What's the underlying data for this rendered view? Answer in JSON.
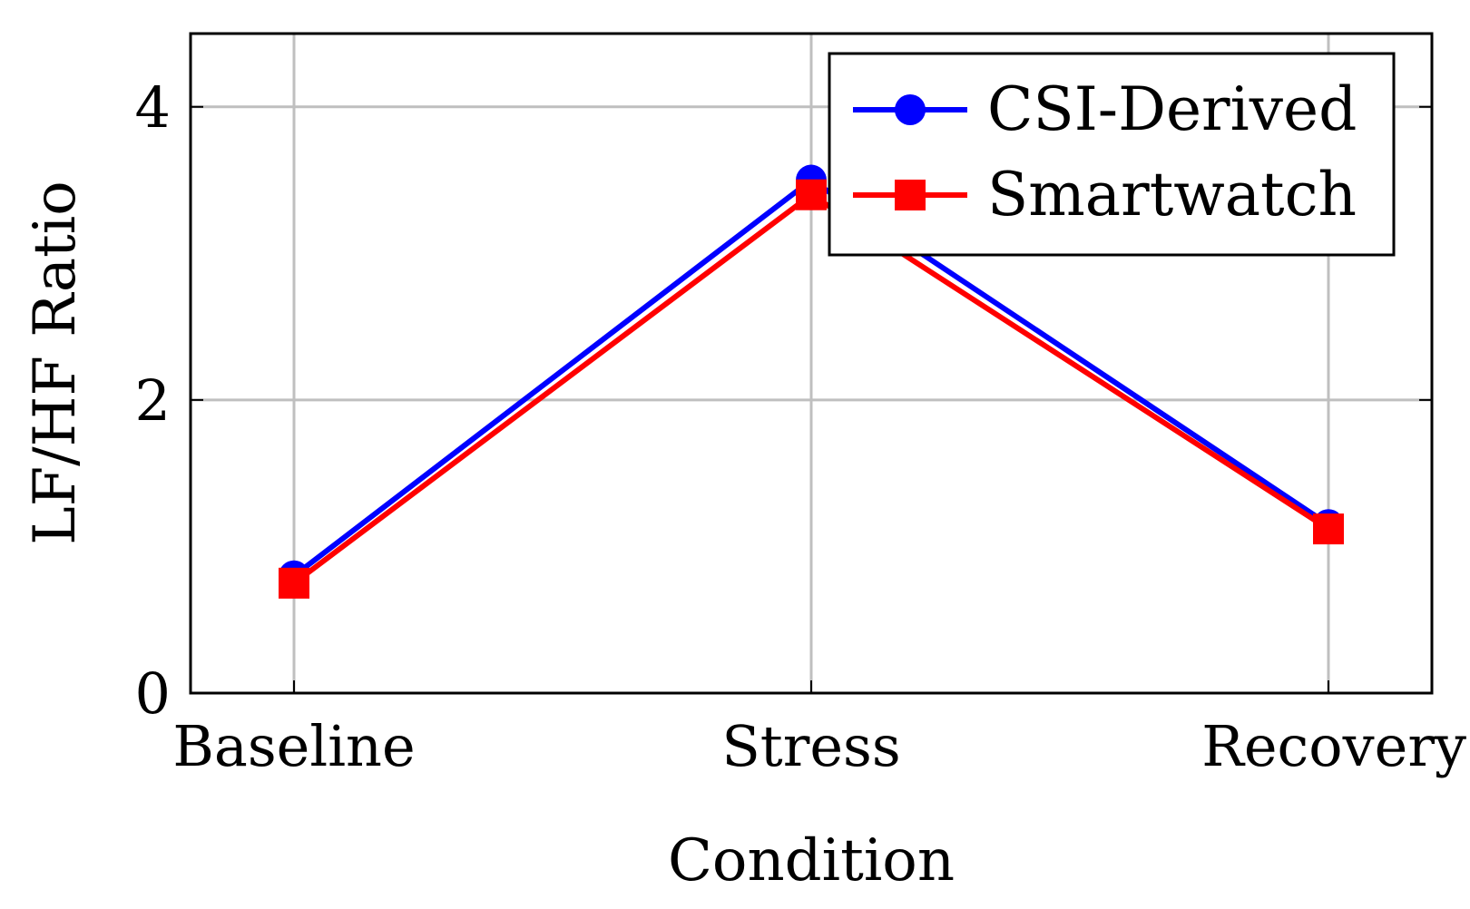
{
  "chart_data": {
    "type": "line",
    "title": "",
    "xlabel": "Condition",
    "ylabel": "LF/HF Ratio",
    "categories": [
      "Baseline",
      "Stress",
      "Recovery"
    ],
    "ylim": [
      0,
      4.5
    ],
    "yticks": [
      0,
      2,
      4
    ],
    "ytick_labels": [
      "0",
      "2",
      "4"
    ],
    "grid": true,
    "legend_position": "top-right",
    "series": [
      {
        "name": "CSI-Derived",
        "values": [
          0.8,
          3.5,
          1.15
        ],
        "color": "#0000ff",
        "marker": "circle"
      },
      {
        "name": "Smartwatch",
        "values": [
          0.75,
          3.4,
          1.12
        ],
        "color": "#ff0000",
        "marker": "square"
      }
    ]
  }
}
